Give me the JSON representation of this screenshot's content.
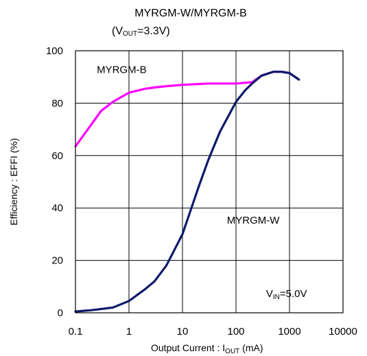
{
  "chart_data": {
    "type": "line",
    "title": "MYRGM-W/MYRGM-B",
    "subtitle": {
      "prefix": "(V",
      "sub": "OUT",
      "suffix": "=3.3V)"
    },
    "xlabel": {
      "prefix": "Output Current : I",
      "sub": "OUT",
      "suffix": " (mA)"
    },
    "ylabel": "Efficiency : EFFI (%)",
    "x_scale": "log",
    "xlim": [
      0.1,
      10000
    ],
    "ylim": [
      0,
      100
    ],
    "x_ticks": [
      0.1,
      1,
      10,
      100,
      1000,
      10000
    ],
    "x_tick_labels": [
      "0.1",
      "1",
      "10",
      "100",
      "1000",
      "10000"
    ],
    "y_ticks": [
      0,
      20,
      40,
      60,
      80,
      100
    ],
    "y_tick_labels": [
      "0",
      "20",
      "40",
      "60",
      "80",
      "100"
    ],
    "grid": true,
    "legend": "none",
    "series": [
      {
        "name": "MYRGM-B",
        "color": "#ff00ff",
        "x": [
          0.1,
          0.2,
          0.3,
          0.5,
          1,
          2,
          3,
          5,
          10,
          20,
          30,
          50,
          100,
          150,
          200,
          300,
          500,
          700,
          1000,
          1500
        ],
        "y": [
          63.5,
          72,
          77,
          80.5,
          84,
          85.5,
          86,
          86.5,
          87,
          87.3,
          87.5,
          87.5,
          87.5,
          87.8,
          88,
          90.5,
          92,
          92,
          91.5,
          89
        ]
      },
      {
        "name": "MYRGM-W",
        "color": "#0d1a6b",
        "x": [
          0.1,
          0.2,
          0.5,
          1,
          2,
          3,
          5,
          10,
          20,
          30,
          50,
          100,
          150,
          200,
          300,
          500,
          700,
          1000,
          1500
        ],
        "y": [
          0.5,
          1,
          2,
          4.5,
          9,
          12,
          18,
          30,
          48,
          58,
          69,
          80.5,
          85,
          87.5,
          90.5,
          92,
          92,
          91.5,
          89
        ]
      }
    ],
    "annotations": [
      {
        "text": "MYRGM-B",
        "x": 0.73,
        "y": 91.5
      },
      {
        "text": "MYRGM-W",
        "x": 210,
        "y": 34
      },
      {
        "prefix": "V",
        "sub": "IN",
        "suffix": "=5.0V",
        "x": 880,
        "y": 6
      }
    ]
  }
}
